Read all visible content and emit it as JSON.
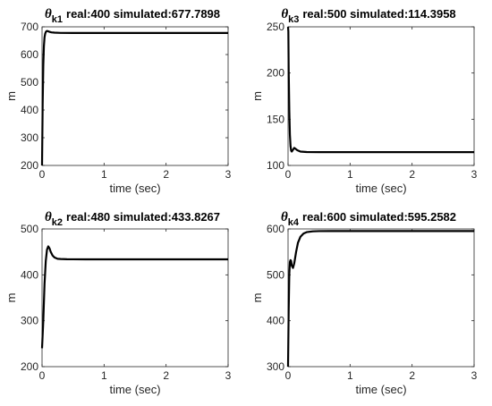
{
  "chart_data": [
    {
      "type": "line",
      "title": {
        "symbol": "θ",
        "subscript": "k1",
        "text": "real:400  simulated:677.7898"
      },
      "xlabel": "time (sec)",
      "ylabel": "m",
      "xlim": [
        0,
        3
      ],
      "ylim": [
        200,
        700
      ],
      "xticks": [
        "0",
        "1",
        "2",
        "3"
      ],
      "yticks": [
        "200",
        "300",
        "400",
        "500",
        "600",
        "700"
      ],
      "grid": false,
      "series": [
        {
          "color": "#000000",
          "x": [
            0,
            0.01,
            0.02,
            0.03,
            0.04,
            0.05,
            0.06,
            0.07,
            0.08,
            0.1,
            0.12,
            0.15,
            0.2,
            0.3,
            0.5,
            1,
            2,
            3
          ],
          "y": [
            200,
            420,
            560,
            630,
            662,
            675,
            681,
            684,
            685,
            684,
            682,
            680,
            679,
            678,
            677.8,
            677.8,
            677.8,
            677.8
          ]
        }
      ]
    },
    {
      "type": "line",
      "title": {
        "symbol": "θ",
        "subscript": "k3",
        "text": "real:500  simulated:114.3958"
      },
      "xlabel": "time (sec)",
      "ylabel": "m",
      "xlim": [
        0,
        3
      ],
      "ylim": [
        100,
        250
      ],
      "xticks": [
        "0",
        "1",
        "2",
        "3"
      ],
      "yticks": [
        "100",
        "150",
        "200",
        "250"
      ],
      "grid": false,
      "series": [
        {
          "color": "#000000",
          "x": [
            0,
            0.005,
            0.01,
            0.02,
            0.03,
            0.04,
            0.05,
            0.06,
            0.08,
            0.1,
            0.12,
            0.15,
            0.2,
            0.3,
            0.5,
            1,
            2,
            3
          ],
          "y": [
            250,
            245,
            205,
            160,
            133,
            121,
            116,
            115,
            117,
            119,
            118,
            116.5,
            115,
            114.5,
            114.4,
            114.4,
            114.4,
            114.4
          ]
        }
      ]
    },
    {
      "type": "line",
      "title": {
        "symbol": "θ",
        "subscript": "k2",
        "text": "real:480  simulated:433.8267"
      },
      "xlabel": "time (sec)",
      "ylabel": "m",
      "xlim": [
        0,
        3
      ],
      "ylim": [
        200,
        500
      ],
      "xticks": [
        "0",
        "1",
        "2",
        "3"
      ],
      "yticks": [
        "200",
        "300",
        "400",
        "500"
      ],
      "grid": false,
      "series": [
        {
          "color": "#000000",
          "x": [
            0,
            0.02,
            0.04,
            0.06,
            0.08,
            0.1,
            0.12,
            0.14,
            0.17,
            0.2,
            0.25,
            0.3,
            0.4,
            0.5,
            0.7,
            1,
            2,
            3
          ],
          "y": [
            240,
            300,
            380,
            430,
            455,
            462,
            458,
            450,
            442,
            438,
            435,
            434.5,
            434,
            433.9,
            433.8,
            433.8,
            433.8,
            433.8
          ]
        }
      ]
    },
    {
      "type": "line",
      "title": {
        "symbol": "θ",
        "subscript": "k4",
        "text": "real:600  simulated:595.2582"
      },
      "xlabel": "time (sec)",
      "ylabel": "m",
      "xlim": [
        0,
        3
      ],
      "ylim": [
        300,
        600
      ],
      "xticks": [
        "0",
        "1",
        "2",
        "3"
      ],
      "yticks": [
        "300",
        "400",
        "500",
        "600"
      ],
      "grid": false,
      "series": [
        {
          "color": "#000000",
          "x": [
            0,
            0.01,
            0.02,
            0.03,
            0.04,
            0.05,
            0.06,
            0.08,
            0.1,
            0.13,
            0.16,
            0.2,
            0.25,
            0.3,
            0.4,
            0.5,
            0.7,
            1,
            2,
            3
          ],
          "y": [
            300,
            420,
            500,
            528,
            532,
            530,
            520,
            515,
            525,
            550,
            570,
            583,
            590,
            593,
            594.8,
            595.2,
            595.3,
            595.3,
            595.3,
            595.3
          ]
        }
      ]
    }
  ]
}
